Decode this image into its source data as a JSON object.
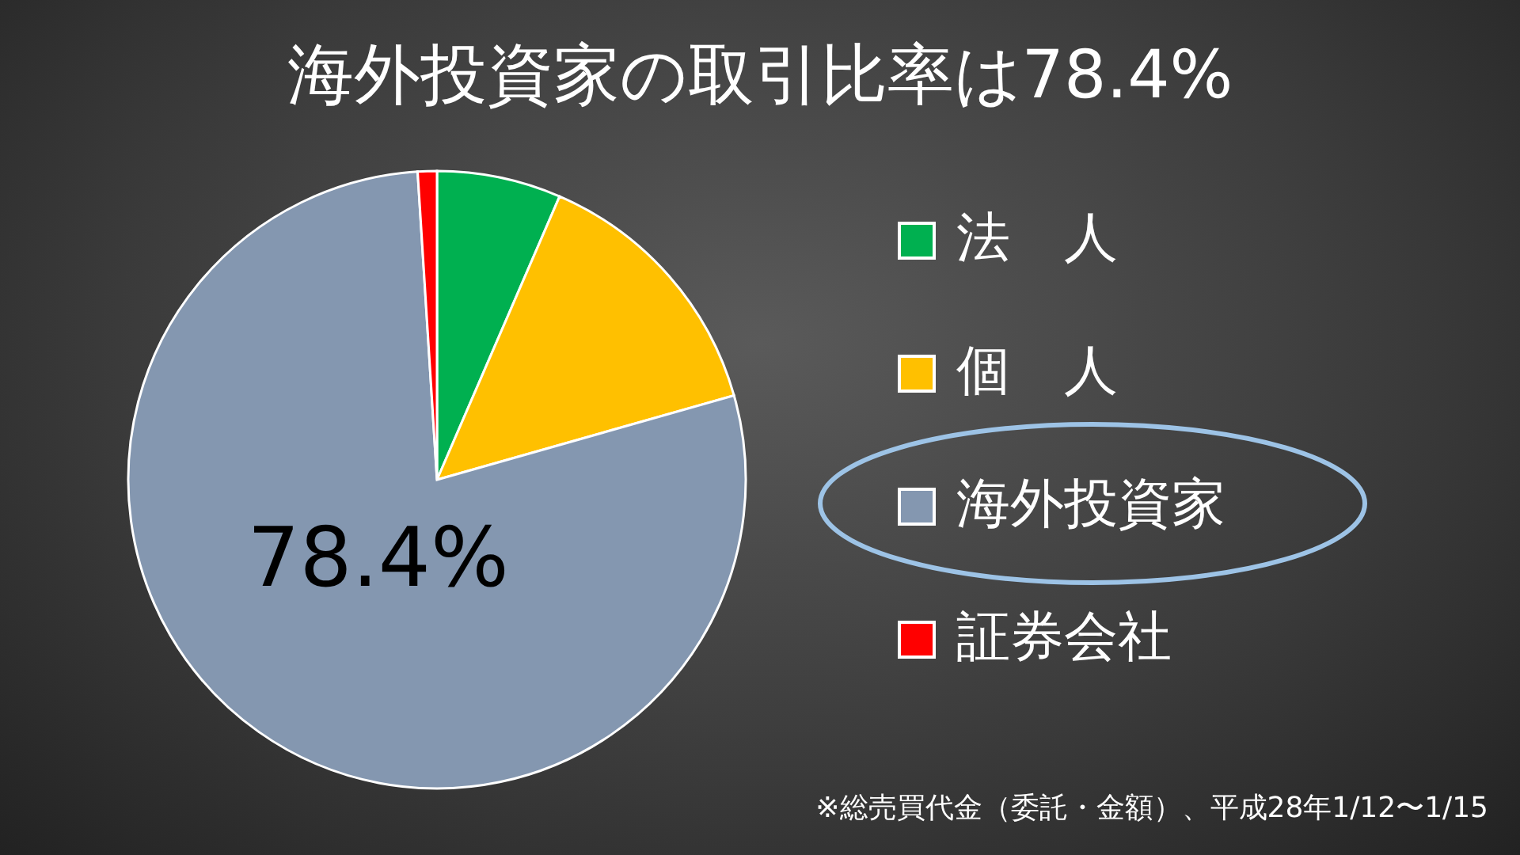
{
  "chart_data": {
    "type": "pie",
    "title": "海外投資家の取引比率は78.4%",
    "categories": [
      "法　人",
      "個　人",
      "海外投資家",
      "証券会社"
    ],
    "values": [
      6.5,
      14.1,
      78.4,
      1.0
    ],
    "colors": [
      "#00b050",
      "#ffc000",
      "#8497b0",
      "#ff0000"
    ],
    "value_labels": [
      null,
      null,
      "78.4%",
      null
    ],
    "legend": "right",
    "annotations": [
      "※総売買代金（委託・金額）、平成28年1/12〜1/15"
    ]
  }
}
